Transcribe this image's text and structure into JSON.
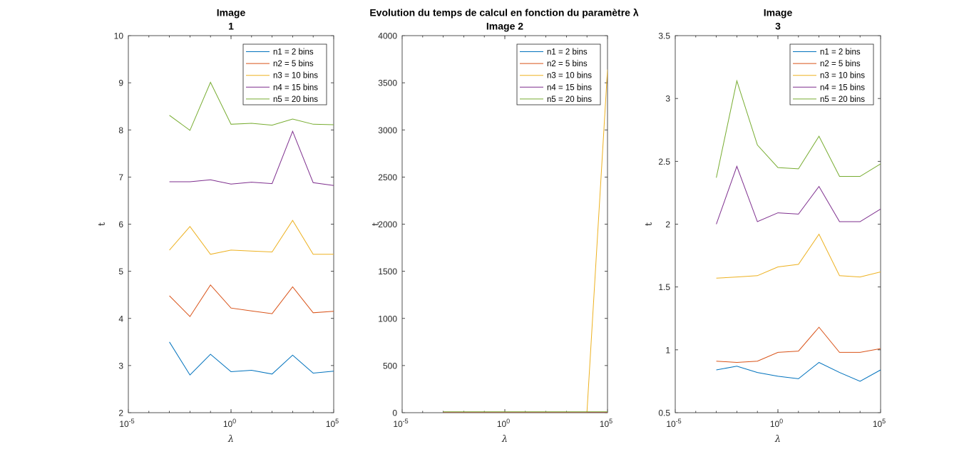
{
  "figure_title": "Evolution du temps de calcul en fonction du paramètre λ",
  "chart_data": [
    {
      "type": "line",
      "title": [
        "Image",
        "1"
      ],
      "xlabel": "λ",
      "ylabel": "t",
      "xscale": "log",
      "xlim": [
        1e-05,
        100000
      ],
      "x_ticks": [
        {
          "base": "10",
          "exp": "-5"
        },
        {
          "base": "10",
          "exp": "0"
        },
        {
          "base": "10",
          "exp": "5"
        }
      ],
      "ylim": [
        2,
        10
      ],
      "y_ticks": [
        "2",
        "3",
        "4",
        "5",
        "6",
        "7",
        "8",
        "9",
        "10"
      ],
      "legend_position": "top-right",
      "x": [
        0.01,
        0.1,
        1,
        3,
        10,
        30,
        100,
        300,
        1000,
        3000,
        10000,
        30000,
        100000
      ],
      "series": [
        {
          "name": "n1 = 2 bins",
          "color": "#0072BD",
          "x": [
            0.001,
            0.01,
            0.1,
            1,
            10,
            100,
            1000,
            10000,
            100000
          ],
          "values": [
            3.5,
            2.8,
            3.24,
            2.87,
            2.9,
            2.82,
            3.22,
            2.84,
            2.88
          ]
        },
        {
          "name": "n2 = 5 bins",
          "color": "#D95319",
          "x": [
            0.001,
            0.01,
            0.1,
            1,
            10,
            100,
            1000,
            10000,
            100000
          ],
          "values": [
            4.48,
            4.04,
            4.71,
            4.22,
            4.16,
            4.1,
            4.67,
            4.12,
            4.15
          ]
        },
        {
          "name": "n3 = 10 bins",
          "color": "#EDB120",
          "x": [
            0.001,
            0.01,
            0.1,
            1,
            10,
            100,
            1000,
            10000,
            100000
          ],
          "values": [
            5.45,
            5.95,
            5.36,
            5.45,
            5.43,
            5.41,
            6.08,
            5.36,
            5.36
          ]
        },
        {
          "name": "n4 = 15 bins",
          "color": "#7E2F8E",
          "x": [
            0.001,
            0.01,
            0.1,
            1,
            10,
            100,
            1000,
            10000,
            100000
          ],
          "values": [
            6.9,
            6.9,
            6.94,
            6.85,
            6.89,
            6.86,
            7.97,
            6.88,
            6.82
          ]
        },
        {
          "name": "n5 = 20 bins",
          "color": "#77AC30",
          "x": [
            0.001,
            0.01,
            0.1,
            1,
            10,
            100,
            1000,
            10000,
            100000
          ],
          "values": [
            8.31,
            7.99,
            9.01,
            8.12,
            8.14,
            8.1,
            8.23,
            8.12,
            8.11
          ]
        }
      ]
    },
    {
      "type": "line",
      "title": [
        "Image 2"
      ],
      "xlabel": "λ",
      "ylabel": "t",
      "xscale": "log",
      "xlim": [
        1e-05,
        100000
      ],
      "x_ticks": [
        {
          "base": "10",
          "exp": "-5"
        },
        {
          "base": "10",
          "exp": "0"
        },
        {
          "base": "10",
          "exp": "5"
        }
      ],
      "ylim": [
        0,
        4000
      ],
      "y_ticks": [
        "0",
        "500",
        "1000",
        "1500",
        "2000",
        "2500",
        "3000",
        "3500",
        "4000"
      ],
      "legend_position": "top-right",
      "series": [
        {
          "name": "n1 = 2 bins",
          "color": "#0072BD",
          "x": [
            0.001,
            0.01,
            0.1,
            1,
            10,
            100,
            1000,
            10000,
            100000
          ],
          "values": [
            2,
            2,
            2,
            2,
            2,
            2,
            2,
            2,
            2
          ]
        },
        {
          "name": "n2 = 5 bins",
          "color": "#D95319",
          "x": [
            0.001,
            0.01,
            0.1,
            1,
            10,
            100,
            1000,
            10000,
            100000
          ],
          "values": [
            4,
            4,
            4,
            4,
            4,
            4,
            4,
            4,
            4
          ]
        },
        {
          "name": "n3 = 10 bins",
          "color": "#EDB120",
          "x": [
            0.001,
            0.01,
            0.1,
            1,
            10,
            100,
            1000,
            10000,
            100000
          ],
          "values": [
            6,
            6,
            6,
            6,
            6,
            6,
            6,
            6,
            3640
          ]
        },
        {
          "name": "n4 = 15 bins",
          "color": "#7E2F8E",
          "x": [
            0.001,
            0.01,
            0.1,
            1,
            10,
            100,
            1000,
            10000,
            100000
          ],
          "values": [
            7,
            7,
            7,
            7,
            7,
            7,
            7,
            7,
            7
          ]
        },
        {
          "name": "n5 = 20 bins",
          "color": "#77AC30",
          "x": [
            0.001,
            0.01,
            0.1,
            1,
            10,
            100,
            1000,
            10000,
            100000
          ],
          "values": [
            9,
            9,
            9,
            9,
            9,
            9,
            9,
            9,
            9
          ]
        }
      ]
    },
    {
      "type": "line",
      "title": [
        "Image",
        "3"
      ],
      "xlabel": "λ",
      "ylabel": "t",
      "xscale": "log",
      "xlim": [
        1e-05,
        100000
      ],
      "x_ticks": [
        {
          "base": "10",
          "exp": "-5"
        },
        {
          "base": "10",
          "exp": "0"
        },
        {
          "base": "10",
          "exp": "5"
        }
      ],
      "ylim": [
        0.5,
        3.5
      ],
      "y_ticks": [
        "0.5",
        "1",
        "1.5",
        "2",
        "2.5",
        "3",
        "3.5"
      ],
      "legend_position": "top-right",
      "series": [
        {
          "name": "n1 = 2 bins",
          "color": "#0072BD",
          "x": [
            0.001,
            0.01,
            0.1,
            1,
            10,
            100,
            1000,
            10000,
            100000
          ],
          "values": [
            0.84,
            0.87,
            0.82,
            0.79,
            0.77,
            0.9,
            0.82,
            0.75,
            0.84
          ]
        },
        {
          "name": "n2 = 5 bins",
          "color": "#D95319",
          "x": [
            0.001,
            0.01,
            0.1,
            1,
            10,
            100,
            1000,
            10000,
            100000
          ],
          "values": [
            0.91,
            0.9,
            0.91,
            0.98,
            0.99,
            1.18,
            0.98,
            0.98,
            1.01
          ]
        },
        {
          "name": "n3 = 10 bins",
          "color": "#EDB120",
          "x": [
            0.001,
            0.01,
            0.1,
            1,
            10,
            100,
            1000,
            10000,
            100000
          ],
          "values": [
            1.57,
            1.58,
            1.59,
            1.66,
            1.68,
            1.92,
            1.59,
            1.58,
            1.62
          ]
        },
        {
          "name": "n4 = 15 bins",
          "color": "#7E2F8E",
          "x": [
            0.001,
            0.01,
            0.1,
            1,
            10,
            100,
            1000,
            10000,
            100000
          ],
          "values": [
            2.0,
            2.46,
            2.02,
            2.09,
            2.08,
            2.3,
            2.02,
            2.02,
            2.12
          ]
        },
        {
          "name": "n5 = 20 bins",
          "color": "#77AC30",
          "x": [
            0.001,
            0.01,
            0.1,
            1,
            10,
            100,
            1000,
            10000,
            100000
          ],
          "values": [
            2.37,
            3.14,
            2.63,
            2.45,
            2.44,
            2.7,
            2.38,
            2.38,
            2.48
          ]
        }
      ]
    }
  ]
}
